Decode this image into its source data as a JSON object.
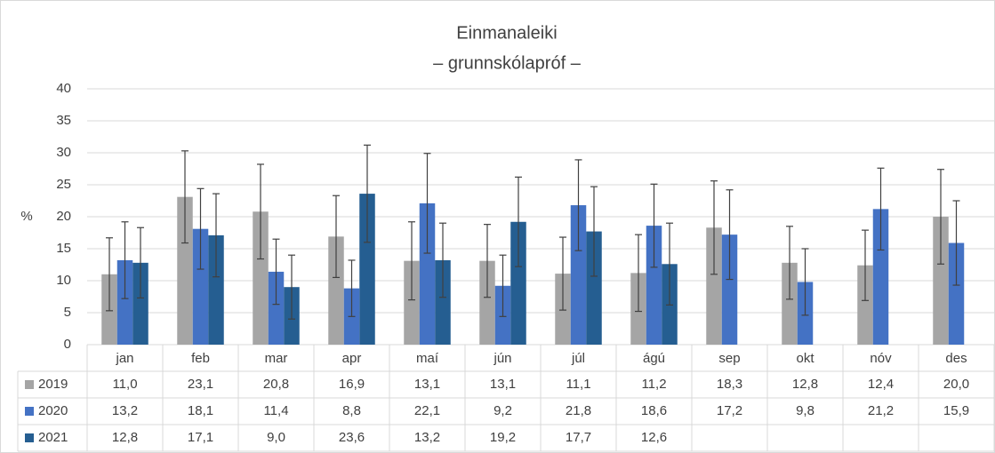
{
  "chart_data": {
    "type": "bar",
    "title": "Einmanaleiki",
    "subtitle": "– grunnskólapróf –",
    "y_label": "%",
    "categories": [
      "jan",
      "feb",
      "mar",
      "apr",
      "maí",
      "jún",
      "júl",
      "ágú",
      "sep",
      "okt",
      "nóv",
      "des"
    ],
    "series": [
      {
        "name": "2019",
        "color": "#a5a5a5",
        "values": [
          11.0,
          23.1,
          20.8,
          16.9,
          13.1,
          13.1,
          11.1,
          11.2,
          18.3,
          12.8,
          12.4,
          20.0
        ],
        "value_labels": [
          "11,0",
          "23,1",
          "20,8",
          "16,9",
          "13,1",
          "13,1",
          "11,1",
          "11,2",
          "18,3",
          "12,8",
          "12,4",
          "20,0"
        ],
        "errors": [
          5.7,
          7.2,
          7.4,
          6.4,
          6.1,
          5.7,
          5.7,
          6.0,
          7.3,
          5.7,
          5.5,
          7.4
        ]
      },
      {
        "name": "2020",
        "color": "#4472c4",
        "values": [
          13.2,
          18.1,
          11.4,
          8.8,
          22.1,
          9.2,
          21.8,
          18.6,
          17.2,
          9.8,
          21.2,
          15.9
        ],
        "value_labels": [
          "13,2",
          "18,1",
          "11,4",
          "8,8",
          "22,1",
          "9,2",
          "21,8",
          "18,6",
          "17,2",
          "9,8",
          "21,2",
          "15,9"
        ],
        "errors": [
          6.0,
          6.3,
          5.1,
          4.4,
          7.8,
          4.8,
          7.1,
          6.5,
          7.0,
          5.2,
          6.4,
          6.6
        ]
      },
      {
        "name": "2021",
        "color": "#255e91",
        "values": [
          12.8,
          17.1,
          9.0,
          23.6,
          13.2,
          19.2,
          17.7,
          12.6,
          null,
          null,
          null,
          null
        ],
        "value_labels": [
          "12,8",
          "17,1",
          "9,0",
          "23,6",
          "13,2",
          "19,2",
          "17,7",
          "12,6",
          null,
          null,
          null,
          null
        ],
        "errors": [
          5.5,
          6.5,
          5.0,
          7.6,
          5.8,
          7.0,
          7.0,
          6.4,
          null,
          null,
          null,
          null
        ]
      }
    ],
    "ylim": [
      0,
      40
    ],
    "yticks": [
      0,
      5,
      10,
      15,
      20,
      25,
      30,
      35,
      40
    ],
    "grid": true
  }
}
